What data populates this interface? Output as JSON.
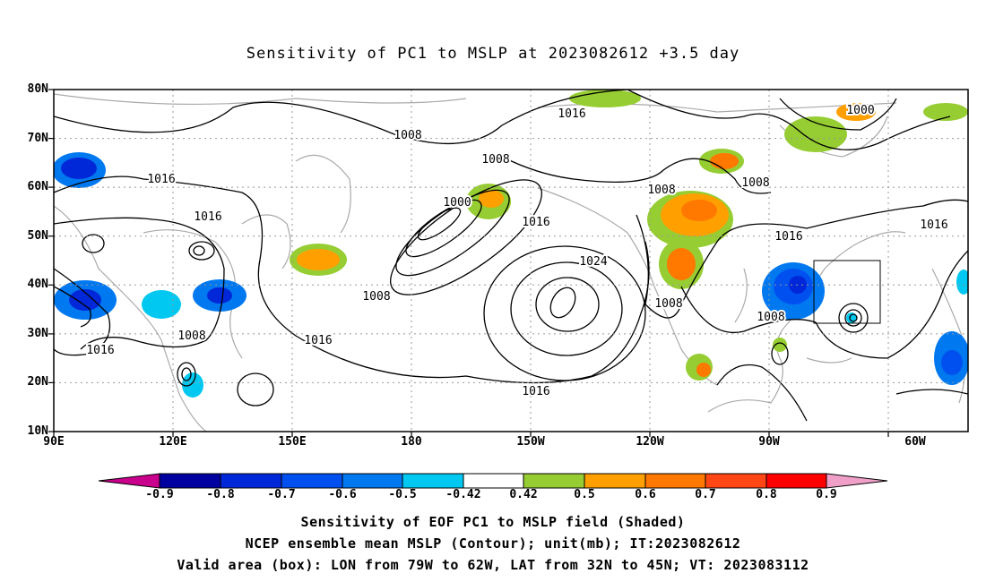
{
  "title": "Sensitivity of PC1 to MSLP at 2023082612 +3.5 day",
  "lat_ticks": [
    "80N",
    "70N",
    "60N",
    "50N",
    "40N",
    "30N",
    "20N",
    "10N"
  ],
  "lon_ticks": [
    "90E",
    "120E",
    "150E",
    "180",
    "150W",
    "120W",
    "90W",
    "60W"
  ],
  "contour_labels": [
    "1016",
    "1008",
    "1000",
    "1008",
    "1016",
    "1008",
    "1016",
    "1016",
    "1000",
    "1016",
    "1008",
    "1008",
    "1016",
    "1024",
    "1008",
    "1008",
    "1016",
    "1008",
    "1016",
    "1016",
    "1008",
    "1016",
    "1016"
  ],
  "colorbar": {
    "labels": [
      "-0.9",
      "-0.8",
      "-0.7",
      "-0.6",
      "-0.5",
      "-0.42",
      "0.42",
      "0.5",
      "0.6",
      "0.7",
      "0.8",
      "0.9"
    ],
    "colors": [
      "#c8008c",
      "#0000a0",
      "#0028d8",
      "#0050f0",
      "#0078f0",
      "#00c8f0",
      "#ffffff",
      "#96cd32",
      "#ffa000",
      "#ff7800",
      "#ff4614",
      "#ff0000",
      "#f0a0c8"
    ]
  },
  "captions": [
    "Sensitivity of EOF PC1 to MSLP field (Shaded)",
    "NCEP ensemble mean MSLP (Contour); unit(mb); IT:2023082612",
    "Valid area (box): LON from 79W to 62W, LAT from 32N to 45N; VT: 2023083112"
  ]
}
